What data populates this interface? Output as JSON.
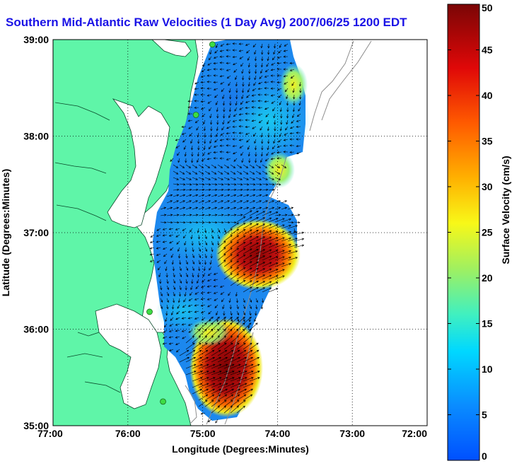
{
  "title": "Southern Mid-Atlantic Raw Velocities (1 Day Avg) 2007/06/25 1200 EDT",
  "colors": {
    "title": "#1a12e6",
    "land": "#5ff5a8",
    "land_coast": "#0a4a2a",
    "ocean": "#ffffff",
    "station": "#3ddc44",
    "arrow": "#000000",
    "bathymetry": "#8c8c8c",
    "grid": "#000000"
  },
  "map": {
    "x_axis": {
      "label": "Longitude (Degrees:Minutes)",
      "range": [
        -77,
        -72
      ],
      "ticks": [
        {
          "value": -77,
          "label": "77:00"
        },
        {
          "value": -76,
          "label": "76:00"
        },
        {
          "value": -75,
          "label": "75:00"
        },
        {
          "value": -74,
          "label": "74:00"
        },
        {
          "value": -73,
          "label": "73:00"
        },
        {
          "value": -72,
          "label": "72:00"
        }
      ]
    },
    "y_axis": {
      "label": "Latitude (Degrees:Minutes)",
      "range": [
        35,
        39
      ],
      "ticks": [
        {
          "value": 35,
          "label": "35:00"
        },
        {
          "value": 36,
          "label": "36:00"
        },
        {
          "value": 37,
          "label": "37:00"
        },
        {
          "value": 38,
          "label": "38:00"
        },
        {
          "value": 39,
          "label": "39:00"
        }
      ]
    },
    "grid": "dotted",
    "stations": [
      {
        "lon": -74.87,
        "lat": 38.95
      },
      {
        "lon": -75.09,
        "lat": 38.22
      },
      {
        "lon": -75.71,
        "lat": 36.18
      },
      {
        "lon": -75.53,
        "lat": 35.25
      }
    ]
  },
  "colorbar": {
    "label": "Surface Velocity (cm/s)",
    "range": [
      0,
      50
    ],
    "ticks": [
      0,
      5,
      10,
      15,
      20,
      25,
      30,
      35,
      40,
      45,
      50
    ],
    "tick_labels": [
      "0",
      "5",
      "10",
      "15",
      "20",
      "25",
      "30",
      "35",
      "40",
      "45",
      "50"
    ]
  }
}
